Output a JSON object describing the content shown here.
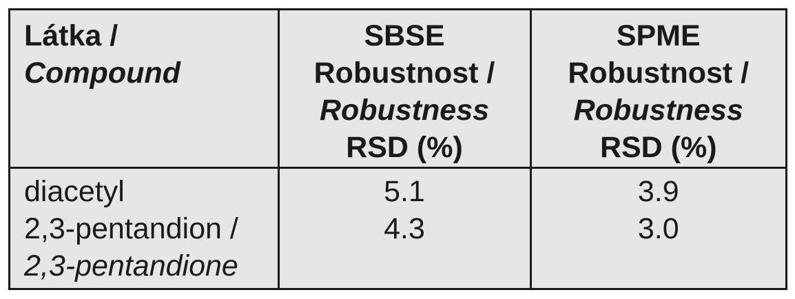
{
  "table": {
    "header": {
      "col1": {
        "line1": "Látka /",
        "line2": "Compound"
      },
      "col2": {
        "line1": "SBSE",
        "line2": "Robustnost /",
        "line3": "Robustness",
        "line4": "RSD (%)"
      },
      "col3": {
        "line1": "SPME",
        "line2": "Robustnost /",
        "line3": "Robustness",
        "line4": "RSD (%)"
      }
    },
    "body": {
      "compounds": {
        "line1": "diacetyl",
        "line2": "2,3-pentandion /",
        "line3": "2,3-pentandione"
      },
      "sbse": {
        "row1": "5.1",
        "row2": "4.3"
      },
      "spme": {
        "row1": "3.9",
        "row2": "3.0"
      }
    }
  }
}
